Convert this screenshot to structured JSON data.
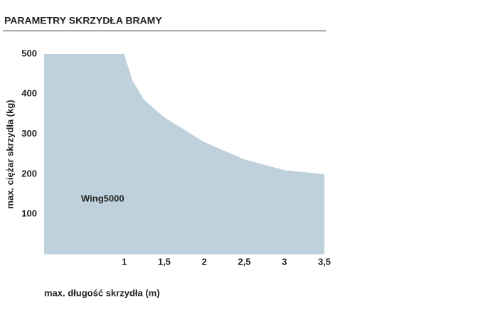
{
  "chart_data": {
    "type": "area",
    "title": "PARAMETRY SKRZYDŁA BRAMY",
    "x_label": "max. długość skrzydła (m)",
    "y_label": "max. ciężar skrzydła (kg)",
    "x": [
      0,
      1,
      1.1,
      1.25,
      1.5,
      2,
      2.5,
      3,
      3.5
    ],
    "series": [
      {
        "name": "Wing5000",
        "color": "#bfd1dc",
        "values": [
          500,
          500,
          435,
          385,
          342,
          280,
          237,
          210,
          200
        ]
      }
    ],
    "xlim": [
      0,
      3.5
    ],
    "ylim": [
      0,
      500
    ],
    "xticks": [
      1,
      {
        "value": 1.5,
        "label": "1,5"
      },
      2,
      {
        "value": 2.5,
        "label": "2,5"
      },
      3,
      {
        "value": 3.5,
        "label": "3,5"
      }
    ],
    "yticks": [
      100,
      200,
      300,
      400,
      500
    ],
    "grid": false
  }
}
